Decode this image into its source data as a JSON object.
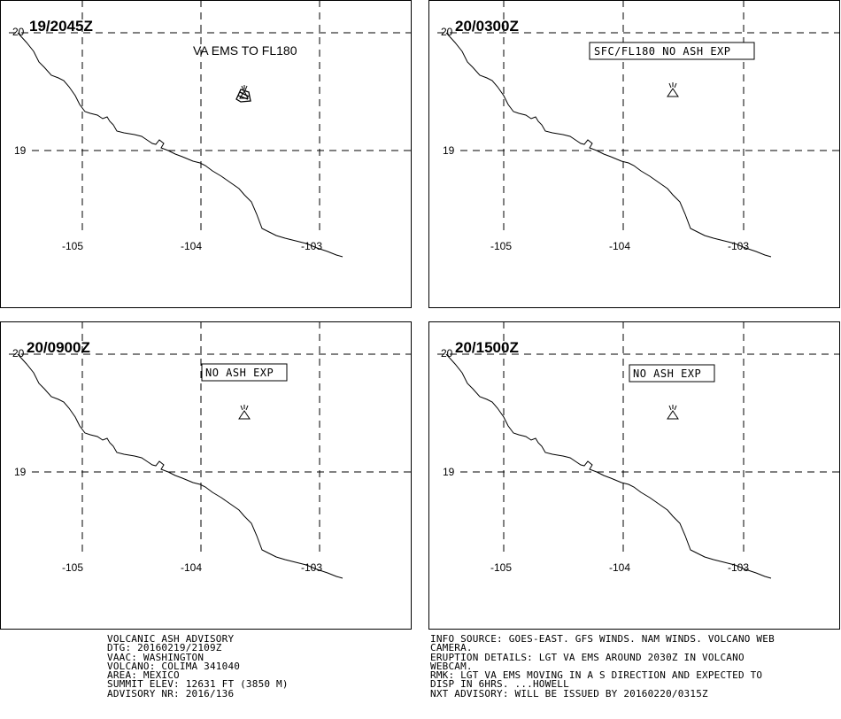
{
  "panels": [
    {
      "time": "19/2045Z",
      "lat_labels": [
        "20",
        "19"
      ],
      "lon_labels": [
        "-105",
        "-104",
        "-103"
      ],
      "annotation": "VA EMS TO FL180",
      "annotation_boxed": false,
      "volcano_icon": "volcano-icon",
      "ash_polygon": true
    },
    {
      "time": "20/0300Z",
      "lat_labels": [
        "20",
        "19"
      ],
      "lon_labels": [
        "-105",
        "-104",
        "-103"
      ],
      "annotation": "SFC/FL180 NO ASH EXP",
      "annotation_boxed": true,
      "volcano_icon": "volcano-icon",
      "ash_polygon": false
    },
    {
      "time": "20/0900Z",
      "lat_labels": [
        "20",
        "19"
      ],
      "lon_labels": [
        "-105",
        "-104",
        "-103"
      ],
      "annotation": "NO ASH EXP",
      "annotation_boxed": true,
      "volcano_icon": "volcano-icon",
      "ash_polygon": false
    },
    {
      "time": "20/1500Z",
      "lat_labels": [
        "20",
        "19"
      ],
      "lon_labels": [
        "-105",
        "-104",
        "-103"
      ],
      "annotation": "NO ASH EXP",
      "annotation_boxed": true,
      "volcano_icon": "volcano-icon",
      "ash_polygon": false
    }
  ],
  "advisory_left": [
    "VOLCANIC ASH ADVISORY",
    "DTG: 20160219/2109Z",
    "VAAC: WASHINGTON",
    "VOLCANO: COLIMA 341040",
    "AREA: MEXICO",
    "SUMMIT ELEV: 12631 FT (3850 M)",
    "ADVISORY NR: 2016/136"
  ],
  "advisory_right": [
    "INFO SOURCE: GOES-EAST. GFS WINDS. NAM WINDS. VOLCANO WEB",
    "CAMERA.",
    "ERUPTION DETAILS: LGT VA EMS AROUND 2030Z IN VOLCANO",
    "WEBCAM.",
    "RMK: LGT VA EMS MOVING IN A S DIRECTION AND EXPECTED TO",
    "DISP IN 6HRS. ...HOWELL",
    "NXT ADVISORY: WILL BE ISSUED BY 20160220/0315Z"
  ]
}
